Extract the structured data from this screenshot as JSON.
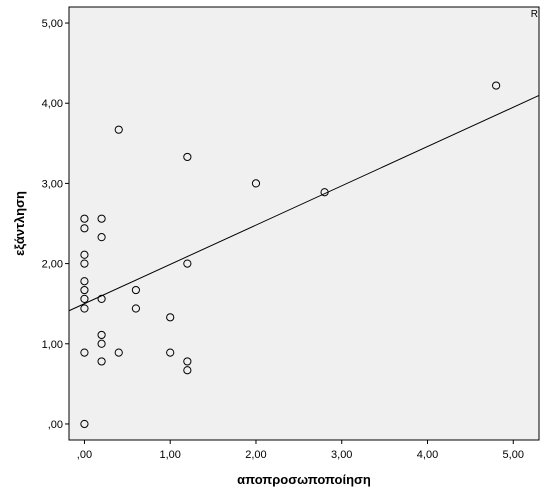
{
  "chart_data": {
    "type": "scatter",
    "xlabel": "αποπροσωποποίηση",
    "ylabel": "εξάντληση",
    "annotation": "R",
    "xlim": [
      -0.18,
      5.3
    ],
    "ylim": [
      -0.2,
      5.2
    ],
    "x_ticks": [
      0,
      1,
      2,
      3,
      4,
      5
    ],
    "x_tick_labels": [
      ",00",
      "1,00",
      "2,00",
      "3,00",
      "4,00",
      "5,00"
    ],
    "y_ticks": [
      0,
      1,
      2,
      3,
      4,
      5
    ],
    "y_tick_labels": [
      ",00",
      "1,00",
      "2,00",
      "3,00",
      "4,00",
      "5,00"
    ],
    "grid": false,
    "colors": {
      "plot_background": "#f0f0f0",
      "marker_stroke": "#000000",
      "line": "#000000"
    },
    "fit_line": {
      "intercept": 1.5,
      "slope": 0.49
    },
    "points": [
      {
        "x": 0,
        "y": 2.56
      },
      {
        "x": 0,
        "y": 2.44
      },
      {
        "x": 0,
        "y": 2.11
      },
      {
        "x": 0,
        "y": 2.0
      },
      {
        "x": 0,
        "y": 1.78
      },
      {
        "x": 0,
        "y": 1.67
      },
      {
        "x": 0,
        "y": 1.56
      },
      {
        "x": 0,
        "y": 1.44
      },
      {
        "x": 0,
        "y": 0.89
      },
      {
        "x": 0,
        "y": 0.0
      },
      {
        "x": 0.2,
        "y": 2.56
      },
      {
        "x": 0.2,
        "y": 2.33
      },
      {
        "x": 0.2,
        "y": 1.56
      },
      {
        "x": 0.2,
        "y": 1.11
      },
      {
        "x": 0.2,
        "y": 1.0
      },
      {
        "x": 0.2,
        "y": 0.78
      },
      {
        "x": 0.4,
        "y": 3.67
      },
      {
        "x": 0.4,
        "y": 0.89
      },
      {
        "x": 0.6,
        "y": 1.67
      },
      {
        "x": 0.6,
        "y": 1.44
      },
      {
        "x": 1.0,
        "y": 1.33
      },
      {
        "x": 1.0,
        "y": 0.89
      },
      {
        "x": 1.2,
        "y": 3.33
      },
      {
        "x": 1.2,
        "y": 2.0
      },
      {
        "x": 1.2,
        "y": 0.78
      },
      {
        "x": 1.2,
        "y": 0.67
      },
      {
        "x": 2.0,
        "y": 3.0
      },
      {
        "x": 2.8,
        "y": 2.89
      },
      {
        "x": 4.8,
        "y": 4.22
      }
    ]
  }
}
